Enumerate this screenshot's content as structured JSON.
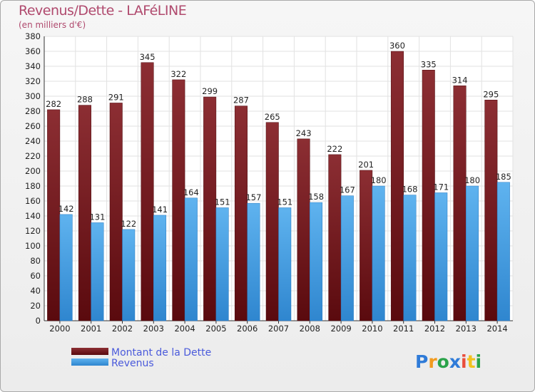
{
  "chart_data": {
    "type": "bar",
    "title": "Revenus/Dette - LAFéLINE",
    "subtitle": "(en milliers d'€)",
    "categories": [
      "2000",
      "2001",
      "2002",
      "2003",
      "2004",
      "2005",
      "2006",
      "2007",
      "2008",
      "2009",
      "2010",
      "2011",
      "2012",
      "2013",
      "2014"
    ],
    "series": [
      {
        "name": "Montant de la Dette",
        "color": "#7a1a1f",
        "values": [
          282,
          288,
          291,
          345,
          322,
          299,
          287,
          265,
          243,
          222,
          201,
          360,
          335,
          314,
          295
        ]
      },
      {
        "name": "Revenus",
        "color": "#4aa3e6",
        "values": [
          142,
          131,
          122,
          141,
          164,
          151,
          157,
          151,
          158,
          167,
          180,
          168,
          171,
          180,
          185
        ]
      }
    ],
    "ylim": [
      0,
      380
    ],
    "yticks": [
      0,
      20,
      40,
      60,
      80,
      100,
      120,
      140,
      160,
      180,
      200,
      220,
      240,
      260,
      280,
      300,
      320,
      340,
      360,
      380
    ],
    "grid": true,
    "legend_position": "bottom-left"
  },
  "logo": {
    "text": "Proxiti",
    "letters": [
      "P",
      "r",
      "o",
      "x",
      "i",
      "t",
      "i"
    ],
    "colors": [
      "#2f7bd8",
      "#f29b1f",
      "#2aa34a",
      "#2f7bd8",
      "#e94e3c",
      "#f2c21f",
      "#2aa34a"
    ]
  }
}
